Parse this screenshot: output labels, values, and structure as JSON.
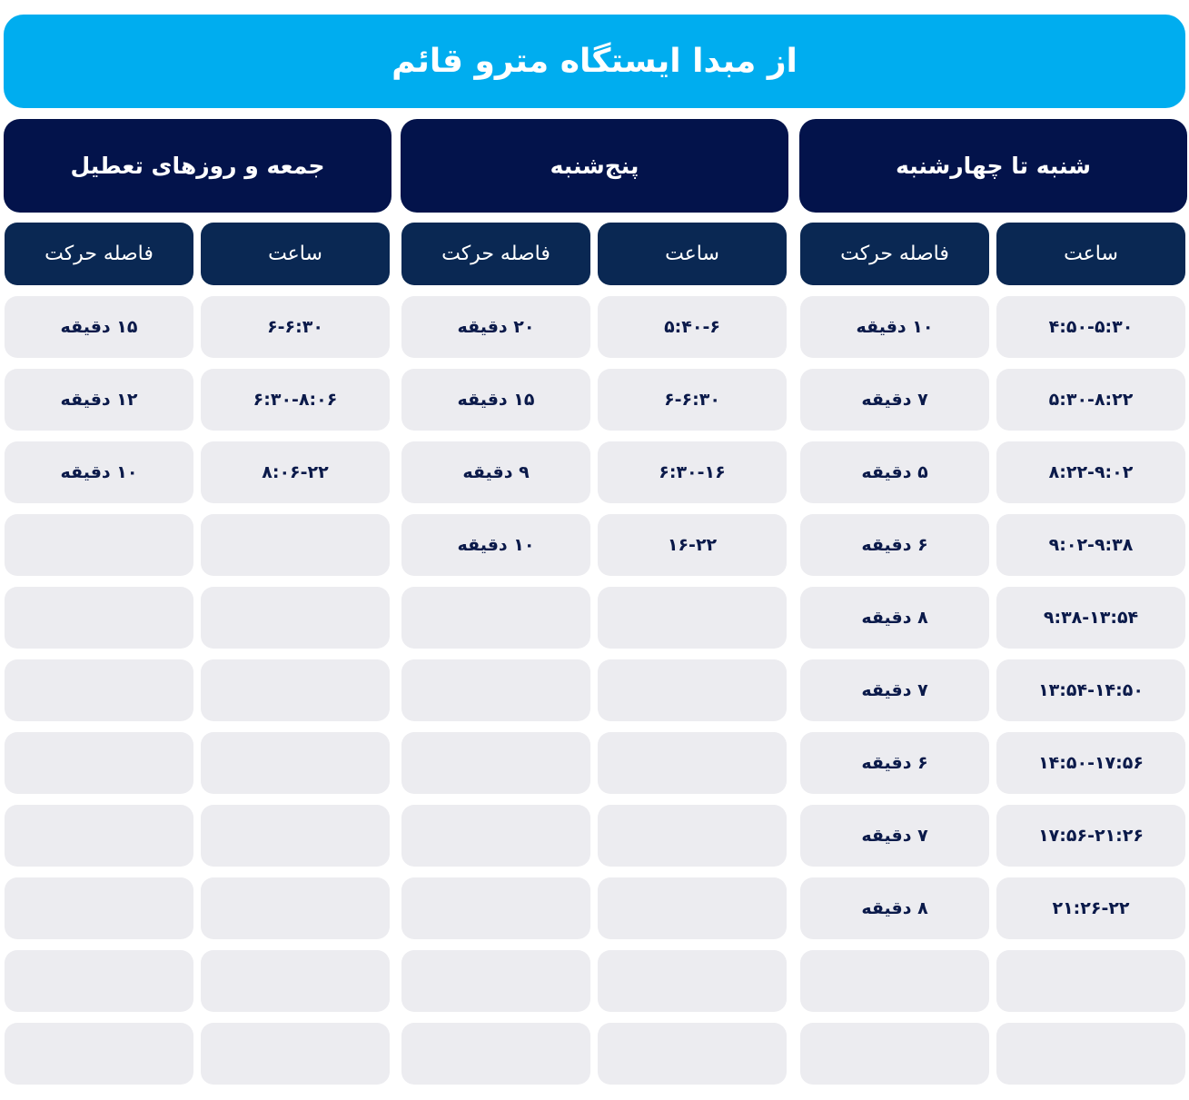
{
  "title": "از مبدا ایستگاه مترو قائم",
  "accent_color": "#00adef",
  "header_color": "#03134b",
  "subheader_color": "#0a2853",
  "cell_color": "#ececf0",
  "groups": [
    {
      "name": "شنبه تا چهارشنبه",
      "time_label": "ساعت",
      "interval_label": "فاصله حرکت",
      "rows": [
        {
          "time": "۴:۵۰-۵:۳۰",
          "interval": "۱۰ دقیقه"
        },
        {
          "time": "۵:۳۰-۸:۲۲",
          "interval": "۷ دقیقه"
        },
        {
          "time": "۸:۲۲-۹:۰۲",
          "interval": "۵ دقیقه"
        },
        {
          "time": "۹:۰۲-۹:۳۸",
          "interval": "۶ دقیقه"
        },
        {
          "time": "۹:۳۸-۱۳:۵۴",
          "interval": "۸ دقیقه"
        },
        {
          "time": "۱۳:۵۴-۱۴:۵۰",
          "interval": "۷ دقیقه"
        },
        {
          "time": "۱۴:۵۰-۱۷:۵۶",
          "interval": "۶ دقیقه"
        },
        {
          "time": "۱۷:۵۶-۲۱:۲۶",
          "interval": "۷ دقیقه"
        },
        {
          "time": "۲۱:۲۶-۲۲",
          "interval": "۸ دقیقه"
        },
        {
          "time": "",
          "interval": ""
        },
        {
          "time": "",
          "interval": ""
        }
      ]
    },
    {
      "name": "پنج‌شنبه",
      "time_label": "ساعت",
      "interval_label": "فاصله حرکت",
      "rows": [
        {
          "time": "۵:۴۰-۶",
          "interval": "۲۰ دقیقه"
        },
        {
          "time": "۶-۶:۳۰",
          "interval": "۱۵ دقیقه"
        },
        {
          "time": "۶:۳۰-۱۶",
          "interval": "۹ دقیقه"
        },
        {
          "time": "۱۶-۲۲",
          "interval": "۱۰ دقیقه"
        },
        {
          "time": "",
          "interval": ""
        },
        {
          "time": "",
          "interval": ""
        },
        {
          "time": "",
          "interval": ""
        },
        {
          "time": "",
          "interval": ""
        },
        {
          "time": "",
          "interval": ""
        },
        {
          "time": "",
          "interval": ""
        },
        {
          "time": "",
          "interval": ""
        }
      ]
    },
    {
      "name": "جمعه و روزهای تعطیل",
      "time_label": "ساعت",
      "interval_label": "فاصله حرکت",
      "rows": [
        {
          "time": "۶-۶:۳۰",
          "interval": "۱۵ دقیقه"
        },
        {
          "time": "۶:۳۰-۸:۰۶",
          "interval": "۱۲ دقیقه"
        },
        {
          "time": "۸:۰۶-۲۲",
          "interval": "۱۰ دقیقه"
        },
        {
          "time": "",
          "interval": ""
        },
        {
          "time": "",
          "interval": ""
        },
        {
          "time": "",
          "interval": ""
        },
        {
          "time": "",
          "interval": ""
        },
        {
          "time": "",
          "interval": ""
        },
        {
          "time": "",
          "interval": ""
        },
        {
          "time": "",
          "interval": ""
        },
        {
          "time": "",
          "interval": ""
        }
      ]
    }
  ]
}
